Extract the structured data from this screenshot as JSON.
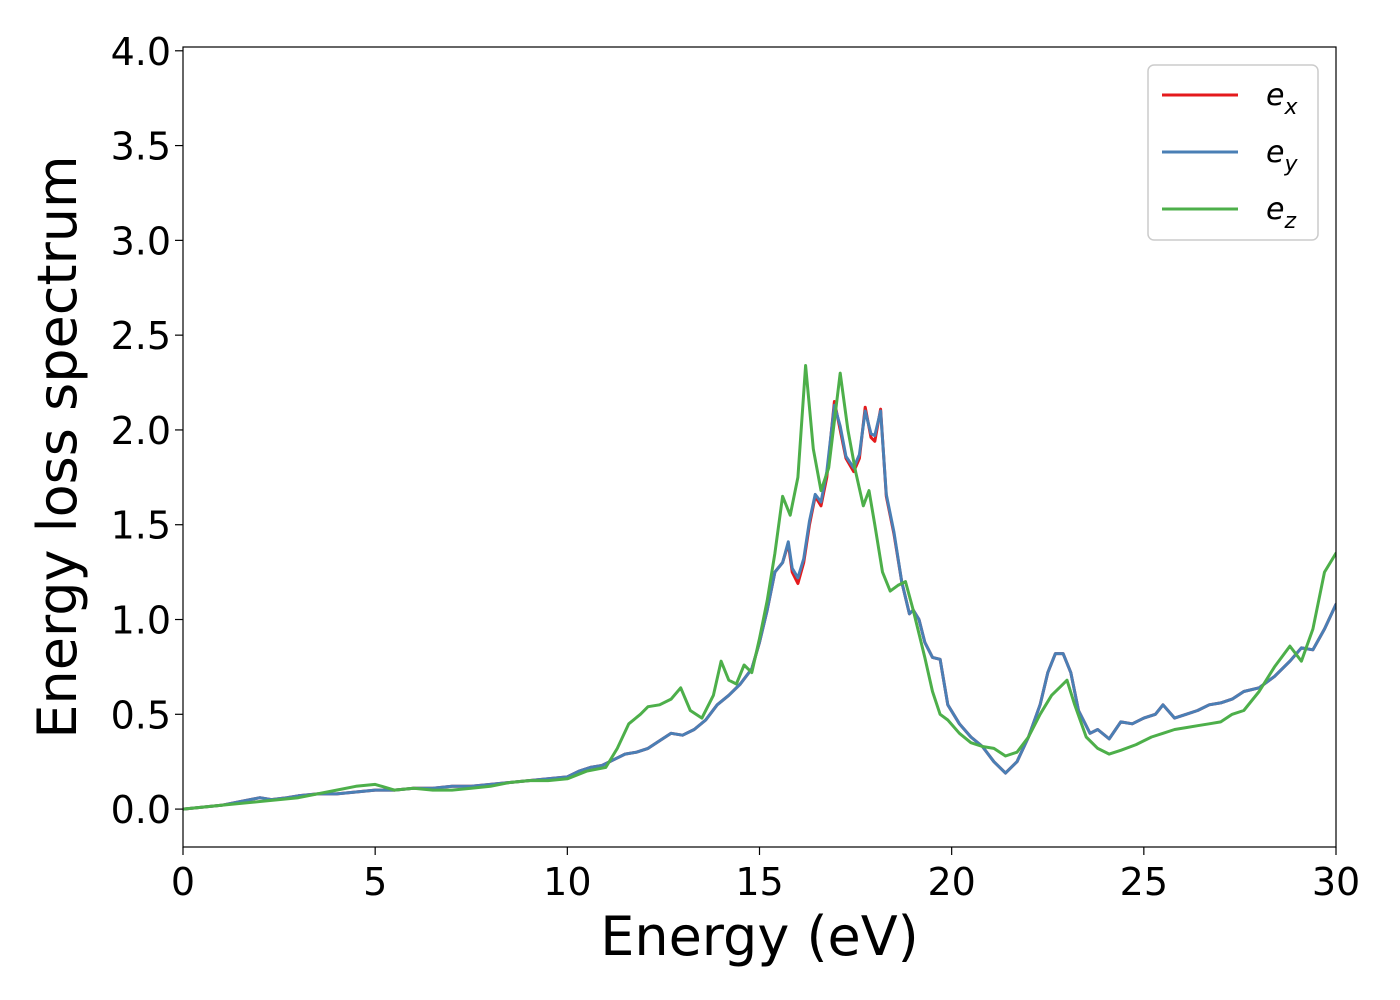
{
  "chart_data": {
    "type": "line",
    "xlabel": "Energy (eV)",
    "ylabel": "Energy loss spectrum",
    "xlim": [
      0,
      30
    ],
    "ylim": [
      -0.2,
      4.02
    ],
    "x_ticks": [
      "0",
      "5",
      "10",
      "15",
      "20",
      "25",
      "30"
    ],
    "y_ticks": [
      "0.0",
      "0.5",
      "1.0",
      "1.5",
      "2.0",
      "2.5",
      "3.0",
      "3.5",
      "4.0"
    ],
    "grid": false,
    "legend_position": "top-right",
    "series": [
      {
        "name": "e",
        "subscript": "x",
        "color": "#e41a1c",
        "x": [
          0,
          1,
          1.5,
          2,
          2.3,
          2.7,
          3,
          3.5,
          4,
          4.5,
          5,
          5.5,
          6,
          6.5,
          7,
          7.5,
          8,
          8.5,
          9,
          9.5,
          10,
          10.3,
          10.6,
          10.9,
          11.2,
          11.5,
          11.8,
          12.1,
          12.4,
          12.7,
          13.0,
          13.3,
          13.6,
          13.9,
          14.2,
          14.5,
          14.8,
          15.0,
          15.2,
          15.4,
          15.6,
          15.75,
          15.85,
          16.0,
          16.15,
          16.3,
          16.45,
          16.6,
          16.75,
          16.95,
          17.1,
          17.25,
          17.45,
          17.6,
          17.75,
          17.9,
          18.0,
          18.15,
          18.3,
          18.5,
          18.7,
          18.9,
          19.0,
          19.15,
          19.3,
          19.5,
          19.7,
          19.9,
          20.2,
          20.5,
          20.8,
          21.1,
          21.4,
          21.7,
          22.0,
          22.3,
          22.5,
          22.7,
          22.9,
          23.1,
          23.3,
          23.6,
          23.8,
          24.1,
          24.4,
          24.7,
          25.0,
          25.3,
          25.5,
          25.8,
          26.1,
          26.4,
          26.7,
          27.0,
          27.3,
          27.6,
          28.0,
          28.4,
          28.8,
          29.1,
          29.4,
          29.7,
          30
        ],
        "y": [
          0.0,
          0.02,
          0.04,
          0.06,
          0.05,
          0.06,
          0.07,
          0.08,
          0.08,
          0.09,
          0.1,
          0.1,
          0.11,
          0.11,
          0.12,
          0.12,
          0.13,
          0.14,
          0.15,
          0.16,
          0.17,
          0.2,
          0.22,
          0.23,
          0.26,
          0.29,
          0.3,
          0.32,
          0.36,
          0.4,
          0.39,
          0.42,
          0.47,
          0.55,
          0.6,
          0.66,
          0.74,
          0.88,
          1.05,
          1.25,
          1.3,
          1.4,
          1.25,
          1.19,
          1.3,
          1.5,
          1.65,
          1.6,
          1.75,
          2.15,
          2.0,
          1.85,
          1.78,
          1.85,
          2.12,
          1.96,
          1.94,
          2.11,
          1.65,
          1.45,
          1.2,
          1.03,
          1.05,
          1.0,
          0.88,
          0.8,
          0.79,
          0.55,
          0.45,
          0.38,
          0.33,
          0.25,
          0.19,
          0.25,
          0.38,
          0.55,
          0.72,
          0.82,
          0.82,
          0.72,
          0.52,
          0.4,
          0.42,
          0.37,
          0.46,
          0.45,
          0.48,
          0.5,
          0.55,
          0.48,
          0.5,
          0.52,
          0.55,
          0.56,
          0.58,
          0.62,
          0.64,
          0.7,
          0.78,
          0.85,
          0.84,
          0.95,
          1.08
        ]
      },
      {
        "name": "e",
        "subscript": "y",
        "color": "#4a7fb5",
        "x": [
          0,
          1,
          1.5,
          2,
          2.3,
          2.7,
          3,
          3.5,
          4,
          4.5,
          5,
          5.5,
          6,
          6.5,
          7,
          7.5,
          8,
          8.5,
          9,
          9.5,
          10,
          10.3,
          10.6,
          10.9,
          11.2,
          11.5,
          11.8,
          12.1,
          12.4,
          12.7,
          13.0,
          13.3,
          13.6,
          13.9,
          14.2,
          14.5,
          14.8,
          15.0,
          15.2,
          15.4,
          15.6,
          15.75,
          15.85,
          16.0,
          16.15,
          16.3,
          16.45,
          16.6,
          16.75,
          16.95,
          17.1,
          17.25,
          17.45,
          17.6,
          17.75,
          17.9,
          18.0,
          18.15,
          18.3,
          18.5,
          18.7,
          18.9,
          19.0,
          19.15,
          19.3,
          19.5,
          19.7,
          19.9,
          20.2,
          20.5,
          20.8,
          21.1,
          21.4,
          21.7,
          22.0,
          22.3,
          22.5,
          22.7,
          22.9,
          23.1,
          23.3,
          23.6,
          23.8,
          24.1,
          24.4,
          24.7,
          25.0,
          25.3,
          25.5,
          25.8,
          26.1,
          26.4,
          26.7,
          27.0,
          27.3,
          27.6,
          28.0,
          28.4,
          28.8,
          29.1,
          29.4,
          29.7,
          30
        ],
        "y": [
          0.0,
          0.02,
          0.04,
          0.06,
          0.05,
          0.06,
          0.07,
          0.08,
          0.08,
          0.09,
          0.1,
          0.1,
          0.11,
          0.11,
          0.12,
          0.12,
          0.13,
          0.14,
          0.15,
          0.16,
          0.17,
          0.2,
          0.22,
          0.23,
          0.26,
          0.29,
          0.3,
          0.32,
          0.36,
          0.4,
          0.39,
          0.42,
          0.47,
          0.55,
          0.6,
          0.66,
          0.74,
          0.88,
          1.05,
          1.25,
          1.3,
          1.41,
          1.27,
          1.22,
          1.32,
          1.52,
          1.66,
          1.62,
          1.78,
          2.13,
          2.02,
          1.86,
          1.8,
          1.87,
          2.1,
          1.98,
          1.97,
          2.1,
          1.66,
          1.46,
          1.2,
          1.03,
          1.05,
          1.0,
          0.88,
          0.8,
          0.79,
          0.55,
          0.45,
          0.38,
          0.33,
          0.25,
          0.19,
          0.25,
          0.38,
          0.55,
          0.72,
          0.82,
          0.82,
          0.72,
          0.52,
          0.4,
          0.42,
          0.37,
          0.46,
          0.45,
          0.48,
          0.5,
          0.55,
          0.48,
          0.5,
          0.52,
          0.55,
          0.56,
          0.58,
          0.62,
          0.64,
          0.7,
          0.78,
          0.85,
          0.84,
          0.95,
          1.08
        ]
      },
      {
        "name": "e",
        "subscript": "z",
        "color": "#4daf4a",
        "x": [
          0,
          1,
          1.5,
          2,
          2.5,
          3,
          3.5,
          4,
          4.5,
          5,
          5.5,
          6,
          6.5,
          7,
          7.5,
          8,
          8.5,
          9,
          9.5,
          10,
          10.5,
          11,
          11.3,
          11.6,
          11.9,
          12.1,
          12.4,
          12.7,
          12.95,
          13.2,
          13.5,
          13.8,
          14.0,
          14.2,
          14.4,
          14.6,
          14.8,
          15.0,
          15.2,
          15.4,
          15.6,
          15.8,
          16.0,
          16.2,
          16.4,
          16.6,
          16.8,
          17.1,
          17.3,
          17.5,
          17.7,
          17.85,
          18.0,
          18.2,
          18.4,
          18.6,
          18.8,
          19.0,
          19.3,
          19.5,
          19.7,
          19.9,
          20.2,
          20.5,
          20.8,
          21.1,
          21.4,
          21.7,
          22.0,
          22.3,
          22.6,
          22.8,
          23.0,
          23.2,
          23.5,
          23.8,
          24.1,
          24.4,
          24.8,
          25.2,
          25.5,
          25.8,
          26.1,
          26.4,
          26.7,
          27.0,
          27.3,
          27.6,
          28.0,
          28.4,
          28.8,
          29.1,
          29.4,
          29.7,
          30
        ],
        "y": [
          0.0,
          0.02,
          0.03,
          0.04,
          0.05,
          0.06,
          0.08,
          0.1,
          0.12,
          0.13,
          0.1,
          0.11,
          0.1,
          0.1,
          0.11,
          0.12,
          0.14,
          0.15,
          0.15,
          0.16,
          0.2,
          0.22,
          0.32,
          0.45,
          0.5,
          0.54,
          0.55,
          0.58,
          0.64,
          0.52,
          0.48,
          0.6,
          0.78,
          0.68,
          0.66,
          0.76,
          0.72,
          0.9,
          1.1,
          1.35,
          1.65,
          1.55,
          1.75,
          2.34,
          1.9,
          1.68,
          1.8,
          2.3,
          2.0,
          1.78,
          1.6,
          1.68,
          1.5,
          1.25,
          1.15,
          1.18,
          1.2,
          1.05,
          0.8,
          0.62,
          0.5,
          0.47,
          0.4,
          0.35,
          0.33,
          0.32,
          0.28,
          0.3,
          0.38,
          0.5,
          0.6,
          0.64,
          0.68,
          0.55,
          0.38,
          0.32,
          0.29,
          0.31,
          0.34,
          0.38,
          0.4,
          0.42,
          0.43,
          0.44,
          0.45,
          0.46,
          0.5,
          0.52,
          0.62,
          0.75,
          0.86,
          0.78,
          0.95,
          1.25,
          1.35
        ]
      }
    ]
  }
}
